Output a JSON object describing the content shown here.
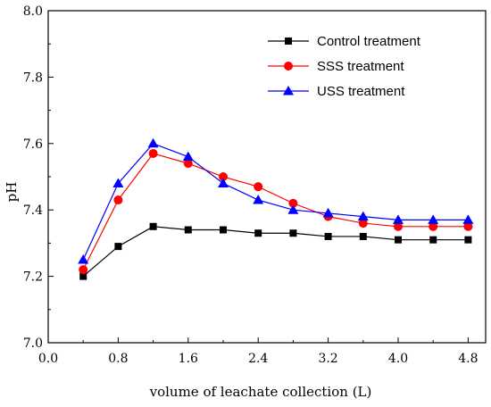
{
  "chart_data": {
    "type": "line",
    "xlabel": "volume of leachate collection (L)",
    "ylabel": "pH",
    "xlim": [
      0.0,
      5.0
    ],
    "ylim": [
      7.0,
      8.0
    ],
    "xticks": [
      "0.0",
      "0.8",
      "1.6",
      "2.4",
      "3.2",
      "4.0",
      "4.8"
    ],
    "yticks": [
      "7.0",
      "7.2",
      "7.4",
      "7.6",
      "7.8",
      "8.0"
    ],
    "x": [
      0.4,
      0.8,
      1.2,
      1.6,
      2.0,
      2.4,
      2.8,
      3.2,
      3.6,
      4.0,
      4.4,
      4.8
    ],
    "grid": false,
    "legend_position": "top-right",
    "series": [
      {
        "name": "Control treatment",
        "color": "#000000",
        "marker": "square",
        "values": [
          7.2,
          7.29,
          7.35,
          7.34,
          7.34,
          7.33,
          7.33,
          7.32,
          7.32,
          7.31,
          7.31,
          7.31
        ]
      },
      {
        "name": "SSS treatment",
        "color": "#ff0000",
        "marker": "circle",
        "values": [
          7.22,
          7.43,
          7.57,
          7.54,
          7.5,
          7.47,
          7.42,
          7.38,
          7.36,
          7.35,
          7.35,
          7.35
        ]
      },
      {
        "name": "USS treatment",
        "color": "#0000ff",
        "marker": "triangle",
        "values": [
          7.25,
          7.48,
          7.6,
          7.56,
          7.48,
          7.43,
          7.4,
          7.39,
          7.38,
          7.37,
          7.37,
          7.37
        ]
      }
    ]
  }
}
